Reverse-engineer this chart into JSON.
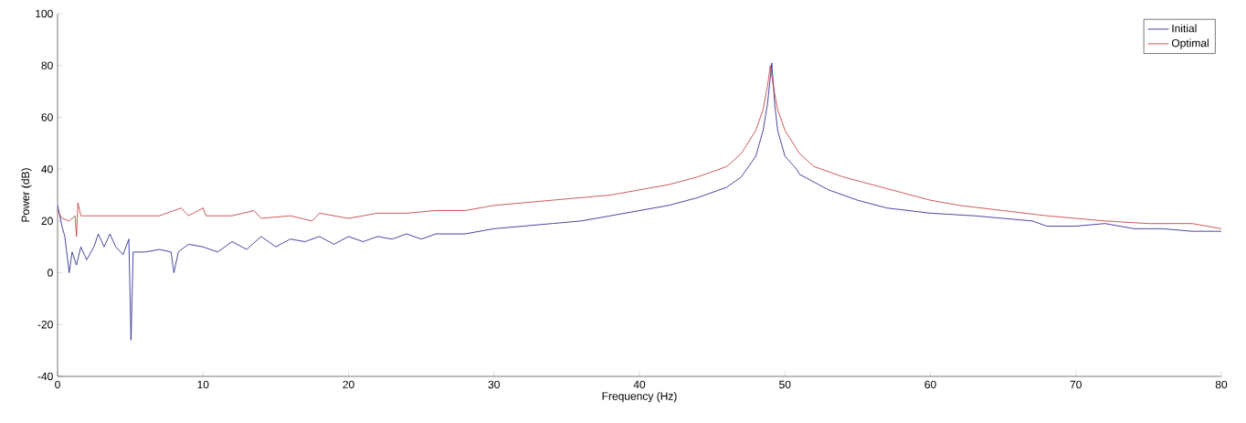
{
  "chart_data": {
    "type": "line",
    "xlabel": "Frequency (Hz)",
    "ylabel": "Power (dB)",
    "xlim": [
      0,
      80
    ],
    "ylim": [
      -40,
      100
    ],
    "xticks": [
      0,
      10,
      20,
      30,
      40,
      50,
      60,
      70,
      80
    ],
    "yticks": [
      -40,
      -20,
      0,
      20,
      40,
      60,
      80,
      100
    ],
    "grid": false,
    "legend": "top right",
    "marker": "none",
    "line_style": "solid",
    "series": [
      {
        "name": "Initial",
        "color": "#1a1a8c",
        "x": [
          0,
          0.3,
          0.5,
          0.8,
          1.0,
          1.3,
          1.6,
          2.0,
          2.5,
          2.8,
          3.2,
          3.6,
          4.0,
          4.5,
          4.9,
          5.05,
          5.2,
          6,
          7,
          7.8,
          8.0,
          8.3,
          9,
          10,
          11,
          12,
          13,
          14,
          15,
          16,
          17,
          18,
          19,
          20,
          21,
          22,
          23,
          24,
          25,
          26,
          28,
          30,
          32,
          34,
          36,
          38,
          40,
          42,
          44,
          46,
          47,
          48,
          48.5,
          48.8,
          49.1,
          49.3,
          49.5,
          50,
          50.8,
          51,
          52,
          53,
          55,
          57,
          60,
          63,
          65,
          67,
          68,
          70,
          72,
          74,
          76,
          78,
          80
        ],
        "values": [
          26,
          18,
          14,
          0,
          8,
          3,
          10,
          5,
          10,
          15,
          10,
          15,
          10,
          7,
          13,
          -26,
          8,
          8,
          9,
          8,
          0,
          8,
          11,
          10,
          8,
          12,
          9,
          14,
          10,
          13,
          12,
          14,
          11,
          14,
          12,
          14,
          13,
          15,
          13,
          15,
          15,
          17,
          18,
          19,
          20,
          22,
          24,
          26,
          29,
          33,
          37,
          45,
          55,
          65,
          81,
          65,
          55,
          45,
          40,
          38,
          35,
          32,
          28,
          25,
          23,
          22,
          21,
          20,
          18,
          18,
          19,
          17,
          17,
          16,
          16
        ]
      },
      {
        "name": "Optimal",
        "color": "#c03030",
        "x": [
          0,
          0.3,
          0.8,
          1.2,
          1.3,
          1.4,
          1.6,
          3,
          5,
          7,
          8.5,
          9,
          10,
          10.2,
          12,
          13.5,
          14,
          16,
          17.5,
          18,
          20,
          22,
          24,
          26,
          28,
          30,
          32,
          34,
          36,
          38,
          40,
          42,
          44,
          46,
          47,
          48,
          48.5,
          48.8,
          49.0,
          49.2,
          49.5,
          50,
          51,
          52,
          54,
          56,
          58,
          60,
          62,
          65,
          68,
          70,
          72,
          75,
          78,
          80
        ],
        "values": [
          24,
          21,
          20,
          22,
          14,
          27,
          22,
          22,
          22,
          22,
          25,
          22,
          25,
          22,
          22,
          24,
          21,
          22,
          20,
          23,
          21,
          23,
          23,
          24,
          24,
          26,
          27,
          28,
          29,
          30,
          32,
          34,
          37,
          41,
          46,
          55,
          63,
          72,
          80,
          72,
          63,
          55,
          46,
          41,
          37,
          34,
          31,
          28,
          26,
          24,
          22,
          21,
          20,
          19,
          19,
          17
        ]
      }
    ]
  }
}
